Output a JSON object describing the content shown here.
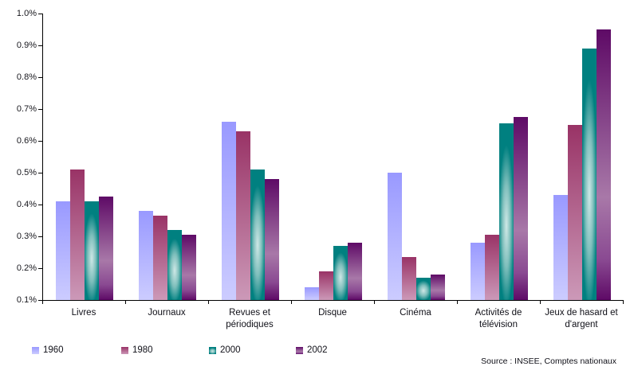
{
  "chart_data": {
    "type": "bar",
    "title": "",
    "xlabel": "",
    "ylabel": "",
    "categories": [
      "Livres",
      "Journaux",
      "Revues et périodiques",
      "Disque",
      "Cinéma",
      "Activités de télévision",
      "Jeux de hasard et d'argent"
    ],
    "categories_display": [
      [
        "Livres"
      ],
      [
        "Journaux"
      ],
      [
        "Revues et",
        "périodiques"
      ],
      [
        "Disque"
      ],
      [
        "Cinéma"
      ],
      [
        "Activités de",
        "télévision"
      ],
      [
        "Jeux de hasard et",
        "d'argent"
      ]
    ],
    "series": [
      {
        "name": "1960",
        "fill": "linear",
        "color_top": "#9999FF",
        "color_bottom": "#CCCCFF",
        "values": [
          0.41,
          0.38,
          0.66,
          0.14,
          0.5,
          0.28,
          0.43
        ]
      },
      {
        "name": "1980",
        "fill": "linear",
        "color_top": "#993366",
        "color_bottom": "#CC99B8",
        "values": [
          0.51,
          0.365,
          0.63,
          0.19,
          0.235,
          0.305,
          0.65
        ]
      },
      {
        "name": "2000",
        "fill": "radial",
        "color_edge": "#008080",
        "color_center": "#CFE8E6",
        "values": [
          0.41,
          0.32,
          0.51,
          0.27,
          0.17,
          0.655,
          0.89
        ]
      },
      {
        "name": "2002",
        "fill": "center-vertical",
        "color_edge": "#5E0A66",
        "color_center": "#A878A8",
        "values": [
          0.425,
          0.305,
          0.48,
          0.28,
          0.18,
          0.675,
          0.95
        ]
      }
    ],
    "ylim": [
      0.1,
      1.0
    ],
    "ytick_labels": [
      "1.0%",
      "0.9%",
      "0.8%",
      "0.7%",
      "0.6%",
      "0.5%",
      "0.4%",
      "0.3%",
      "0.2%",
      "0.1%"
    ],
    "ytick_values": [
      1.0,
      0.9,
      0.8,
      0.7,
      0.6,
      0.5,
      0.4,
      0.3,
      0.2,
      0.1
    ],
    "grid": false,
    "legend_position": "bottom"
  },
  "source": {
    "text": "Source : INSEE, Comptes nationaux"
  }
}
